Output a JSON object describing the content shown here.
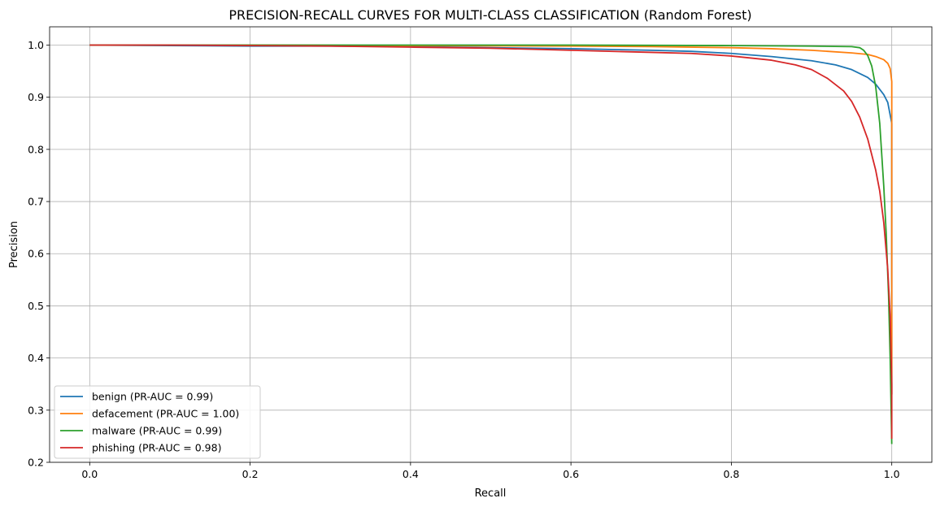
{
  "chart_data": {
    "type": "line",
    "title": "PRECISION-RECALL CURVES FOR MULTI-CLASS CLASSIFICATION (Random Forest)",
    "xlabel": "Recall",
    "ylabel": "Precision",
    "xlim": [
      -0.05,
      1.05
    ],
    "ylim": [
      0.2,
      1.035
    ],
    "xticks": [
      0.0,
      0.2,
      0.4,
      0.6,
      0.8,
      1.0
    ],
    "xtick_labels": [
      "0.0",
      "0.2",
      "0.4",
      "0.6",
      "0.8",
      "1.0"
    ],
    "yticks": [
      0.2,
      0.3,
      0.4,
      0.5,
      0.6,
      0.7,
      0.8,
      0.9,
      1.0
    ],
    "ytick_labels": [
      "0.2",
      "0.3",
      "0.4",
      "0.5",
      "0.6",
      "0.7",
      "0.8",
      "0.9",
      "1.0"
    ],
    "grid": true,
    "legend_position": "lower-left",
    "series": [
      {
        "name": "benign (PR-AUC = 0.99)",
        "color": "#1f77b4",
        "x": [
          0.0,
          0.1,
          0.2,
          0.3,
          0.4,
          0.5,
          0.6,
          0.7,
          0.75,
          0.8,
          0.85,
          0.9,
          0.93,
          0.95,
          0.97,
          0.98,
          0.99,
          0.995,
          1.0,
          1.0
        ],
        "y": [
          1.0,
          0.999,
          0.998,
          0.998,
          0.997,
          0.995,
          0.993,
          0.99,
          0.988,
          0.984,
          0.978,
          0.97,
          0.962,
          0.953,
          0.938,
          0.925,
          0.905,
          0.89,
          0.85,
          0.33
        ]
      },
      {
        "name": "defacement (PR-AUC = 1.00)",
        "color": "#ff7f0e",
        "x": [
          0.0,
          0.2,
          0.4,
          0.6,
          0.7,
          0.8,
          0.85,
          0.9,
          0.95,
          0.97,
          0.98,
          0.99,
          0.995,
          0.998,
          1.0,
          1.0
        ],
        "y": [
          1.0,
          1.0,
          0.999,
          0.998,
          0.997,
          0.995,
          0.993,
          0.99,
          0.985,
          0.982,
          0.978,
          0.972,
          0.965,
          0.955,
          0.93,
          0.33
        ]
      },
      {
        "name": "malware (PR-AUC = 0.99)",
        "color": "#2ca02c",
        "x": [
          0.0,
          0.2,
          0.4,
          0.6,
          0.8,
          0.9,
          0.95,
          0.96,
          0.965,
          0.97,
          0.975,
          0.98,
          0.985,
          0.99,
          0.993,
          0.996,
          0.998,
          1.0
        ],
        "y": [
          1.0,
          1.0,
          1.0,
          1.0,
          0.999,
          0.998,
          0.997,
          0.995,
          0.99,
          0.98,
          0.96,
          0.92,
          0.85,
          0.73,
          0.64,
          0.52,
          0.4,
          0.235
        ]
      },
      {
        "name": "phishing (PR-AUC = 0.98)",
        "color": "#d62728",
        "x": [
          0.0,
          0.1,
          0.2,
          0.3,
          0.4,
          0.5,
          0.6,
          0.7,
          0.75,
          0.8,
          0.85,
          0.88,
          0.9,
          0.92,
          0.94,
          0.95,
          0.96,
          0.97,
          0.98,
          0.985,
          0.99,
          0.995,
          0.998,
          1.0,
          1.0
        ],
        "y": [
          1.0,
          1.0,
          0.999,
          0.998,
          0.996,
          0.994,
          0.99,
          0.986,
          0.984,
          0.979,
          0.971,
          0.962,
          0.953,
          0.936,
          0.912,
          0.892,
          0.862,
          0.82,
          0.76,
          0.72,
          0.66,
          0.57,
          0.48,
          0.35,
          0.245
        ]
      }
    ]
  }
}
